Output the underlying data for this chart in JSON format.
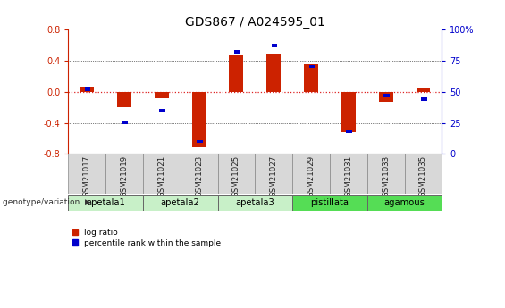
{
  "title": "GDS867 / A024595_01",
  "samples": [
    "GSM21017",
    "GSM21019",
    "GSM21021",
    "GSM21023",
    "GSM21025",
    "GSM21027",
    "GSM21029",
    "GSM21031",
    "GSM21033",
    "GSM21035"
  ],
  "log_ratios": [
    0.05,
    -0.2,
    -0.08,
    -0.72,
    0.47,
    0.49,
    0.35,
    -0.52,
    -0.13,
    0.04
  ],
  "percentile_ranks": [
    52,
    25,
    35,
    10,
    82,
    87,
    70,
    18,
    47,
    44
  ],
  "groups": [
    {
      "label": "apetala1",
      "samples": [
        "GSM21017",
        "GSM21019"
      ],
      "color": "#c8f0c8"
    },
    {
      "label": "apetala2",
      "samples": [
        "GSM21021",
        "GSM21023"
      ],
      "color": "#c8f0c8"
    },
    {
      "label": "apetala3",
      "samples": [
        "GSM21025",
        "GSM21027"
      ],
      "color": "#c8f0c8"
    },
    {
      "label": "pistillata",
      "samples": [
        "GSM21029",
        "GSM21031"
      ],
      "color": "#55dd55"
    },
    {
      "label": "agamous",
      "samples": [
        "GSM21033",
        "GSM21035"
      ],
      "color": "#55dd55"
    }
  ],
  "ylim_left": [
    -0.8,
    0.8
  ],
  "ylim_right": [
    0,
    100
  ],
  "yticks_left": [
    -0.8,
    -0.4,
    0.0,
    0.4,
    0.8
  ],
  "yticks_right": [
    0,
    25,
    50,
    75,
    100
  ],
  "ytick_labels_right": [
    "0",
    "25",
    "50",
    "75",
    "100%"
  ],
  "bar_color_red": "#cc2200",
  "bar_color_blue": "#0000cc",
  "zero_line_color": "#dd2222",
  "grid_color": "#000000",
  "title_fontsize": 10,
  "tick_fontsize": 7,
  "genotype_label": "genotype/variation"
}
